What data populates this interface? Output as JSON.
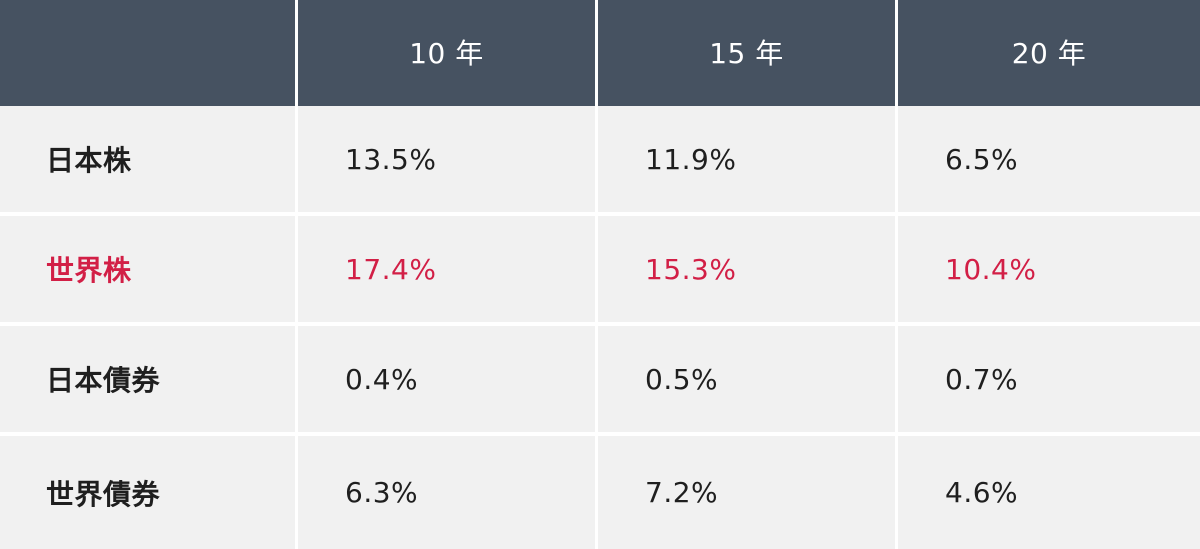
{
  "table": {
    "header": {
      "blank": "",
      "columns": [
        "10 年",
        "15 年",
        "20 年"
      ]
    },
    "rows": [
      {
        "label": "日本株",
        "values": [
          "13.5%",
          "11.9%",
          "6.5%"
        ],
        "highlight": false
      },
      {
        "label": "世界株",
        "values": [
          "17.4%",
          "15.3%",
          "10.4%"
        ],
        "highlight": true
      },
      {
        "label": "日本債券",
        "values": [
          "0.4%",
          "0.5%",
          "0.7%"
        ],
        "highlight": false
      },
      {
        "label": "世界債券",
        "values": [
          "6.3%",
          "7.2%",
          "4.6%"
        ],
        "highlight": false
      }
    ]
  },
  "colors": {
    "header_bg": "#465261",
    "cell_bg": "#f1f1f1",
    "text": "#1f1f1f",
    "highlight": "#d21f46"
  }
}
